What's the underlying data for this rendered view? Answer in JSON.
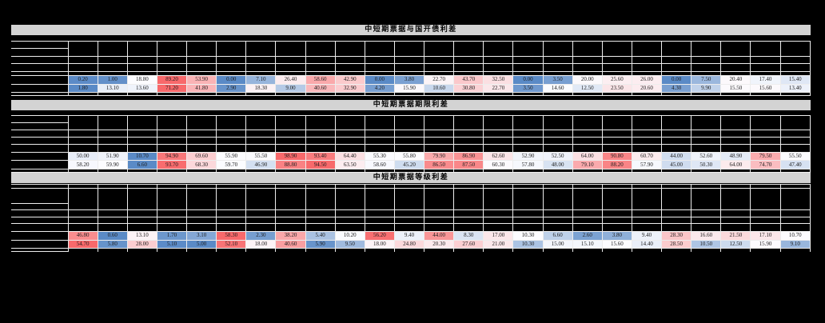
{
  "page": {
    "background": "#000000"
  },
  "styles": {
    "title_bar_bg": "#d3d3d3",
    "title_text_color": "#000000",
    "grid_line_color": "#ededed",
    "cell_text_color": "#1c1c1c",
    "heatmap_scale": {
      "low": "#5A8AC6",
      "mid": "#FCFCFF",
      "high": "#F8696B"
    }
  },
  "value_format": "0.00",
  "chart_data": [
    {
      "type": "heatmap",
      "title": "中短期票据与国开债利差",
      "columns": 25,
      "color_rule": "per-row 3-color scale: min=blue, median=white, max=red",
      "rows": [
        [
          0.2,
          1.0,
          18.8,
          89.2,
          53.9,
          0.0,
          7.1,
          26.4,
          58.6,
          42.9,
          0.0,
          3.8,
          22.7,
          43.7,
          32.5,
          0.0,
          3.5,
          20.0,
          25.6,
          26.0,
          0.0,
          7.5,
          20.4,
          17.4,
          15.4
        ],
        [
          1.8,
          13.1,
          13.6,
          71.2,
          41.8,
          2.9,
          18.3,
          9.0,
          40.6,
          32.9,
          4.2,
          15.9,
          10.6,
          30.8,
          22.7,
          3.5,
          14.6,
          12.5,
          23.5,
          20.6,
          4.3,
          9.9,
          15.5,
          15.6,
          13.4
        ]
      ]
    },
    {
      "type": "heatmap",
      "title": "中短期票据期限利差",
      "columns": 25,
      "color_rule": "per-row 3-color scale: min=blue, median=white, max=red",
      "rows": [
        [
          50.0,
          51.9,
          10.7,
          94.9,
          69.6,
          55.9,
          55.5,
          98.9,
          93.4,
          64.4,
          55.3,
          55.8,
          79.9,
          86.9,
          62.6,
          52.9,
          52.5,
          64.0,
          90.8,
          60.7,
          44.0,
          52.6,
          48.9,
          79.5,
          55.5
        ],
        [
          58.2,
          59.9,
          6.6,
          93.7,
          68.3,
          59.7,
          46.9,
          88.8,
          94.5,
          63.5,
          58.6,
          45.2,
          86.5,
          87.5,
          60.3,
          57.8,
          48.0,
          79.1,
          88.2,
          57.9,
          45.0,
          50.3,
          64.0,
          74.7,
          47.4
        ]
      ]
    },
    {
      "type": "heatmap",
      "title": "中短期票据等级利差",
      "columns": 25,
      "color_rule": "per-row 3-color scale: min=blue, median=white, max=red",
      "rows": [
        [
          46.8,
          0.6,
          13.1,
          1.7,
          3.1,
          58.3,
          2.3,
          38.2,
          5.4,
          10.2,
          56.2,
          9.4,
          44.0,
          8.3,
          17.0,
          10.3,
          6.6,
          2.6,
          3.8,
          9.4,
          28.3,
          16.6,
          21.5,
          17.1,
          10.7
        ],
        [
          54.7,
          5.8,
          28.0,
          5.1,
          5.0,
          52.1,
          18.0,
          40.6,
          5.9,
          9.5,
          18.0,
          24.8,
          20.3,
          27.6,
          21.0,
          10.3,
          15.0,
          15.1,
          15.6,
          14.4,
          28.5,
          10.5,
          12.5,
          15.9,
          9.1
        ]
      ]
    }
  ]
}
